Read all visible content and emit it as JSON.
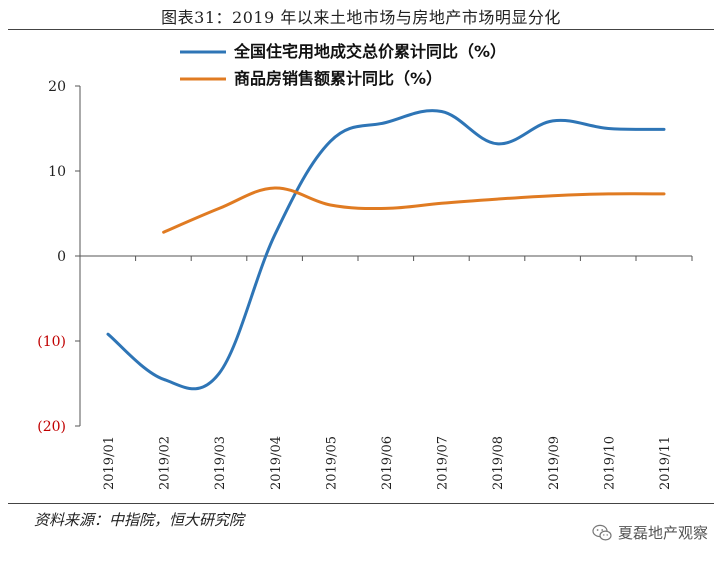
{
  "figure_title": "图表31：2019 年以来土地市场与房地产市场明显分化",
  "source_note": "资料来源：中指院，恒大研究院",
  "watermark_text": "夏磊地产观察",
  "watermark_icon": "wechat-icon",
  "chart_data": {
    "type": "line",
    "title": "",
    "xlabel": "",
    "ylabel": "",
    "categories": [
      "2019/01",
      "2019/02",
      "2019/03",
      "2019/04",
      "2019/05",
      "2019/06",
      "2019/07",
      "2019/08",
      "2019/09",
      "2019/10",
      "2019/11"
    ],
    "ylim": [
      -20,
      20
    ],
    "yticks": [
      20,
      10,
      0,
      -10,
      -20
    ],
    "ytick_labels": [
      "20",
      "10",
      "0",
      "(10)",
      "(20)"
    ],
    "negative_tick_color": "#c00000",
    "grid": false,
    "legend_position": "top",
    "series": [
      {
        "name": "全国住宅用地成交总价累计同比（%）",
        "color": "#2e75b6",
        "values": [
          -9.2,
          -14.5,
          -13.8,
          2.5,
          13.5,
          15.7,
          17.0,
          13.2,
          15.9,
          15.0,
          14.9
        ]
      },
      {
        "name": "商品房销售额累计同比（%）",
        "color": "#e07b22",
        "values": [
          null,
          2.8,
          5.6,
          8.0,
          6.0,
          5.6,
          6.2,
          6.7,
          7.1,
          7.3,
          7.3
        ]
      }
    ]
  }
}
